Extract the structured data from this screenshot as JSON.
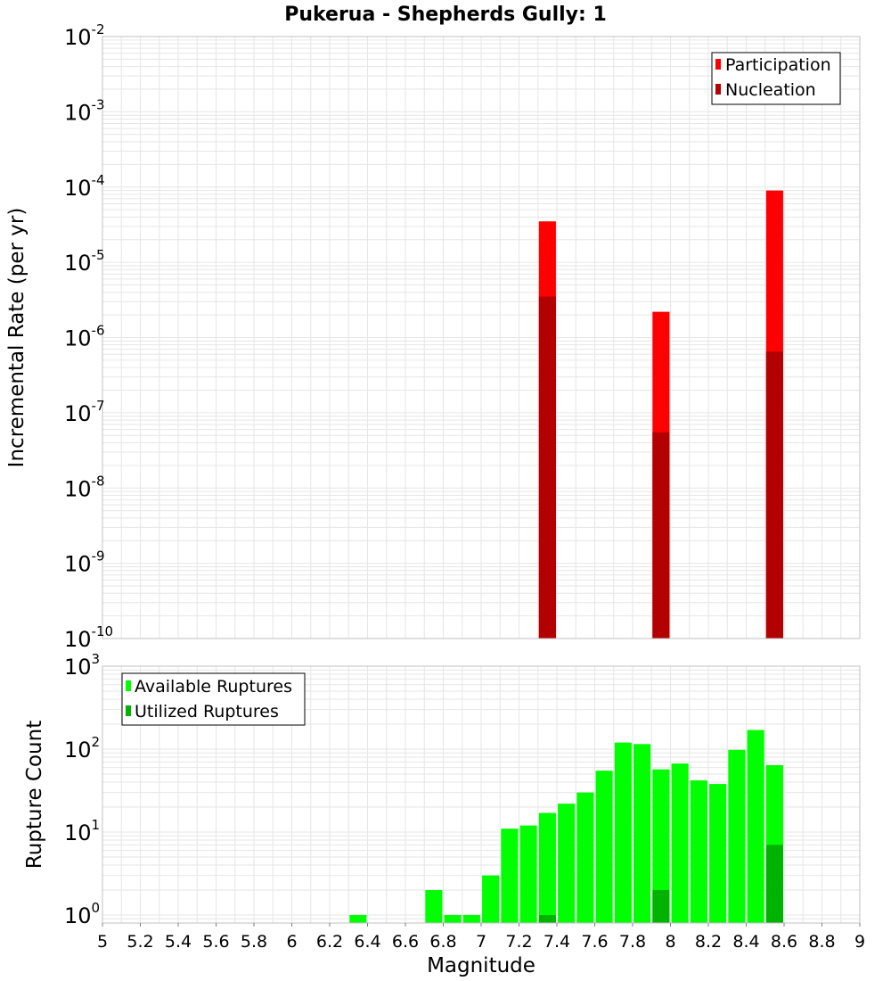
{
  "title": "Pukerua - Shepherds Gully: 1",
  "colors": {
    "participation": "#ff0000",
    "nucleation": "#b30000",
    "available": "#00ff00",
    "utilized": "#00b300",
    "grid": "#e6e6e6",
    "frame": "#c0c0c0"
  },
  "chart_data": [
    {
      "type": "bar",
      "name": "rates",
      "ylabel": "Incremental Rate (per yr)",
      "yscale": "log",
      "ylim_exp": [
        -10,
        -2
      ],
      "ytick_labels": [
        {
          "base": "10",
          "exp": "-10"
        },
        {
          "base": "10",
          "exp": "-9"
        },
        {
          "base": "10",
          "exp": "-8"
        },
        {
          "base": "10",
          "exp": "-7"
        },
        {
          "base": "10",
          "exp": "-6"
        },
        {
          "base": "10",
          "exp": "-5"
        },
        {
          "base": "10",
          "exp": "-4"
        },
        {
          "base": "10",
          "exp": "-3"
        },
        {
          "base": "10",
          "exp": "-2"
        }
      ],
      "legend": {
        "position": "top-right",
        "items": [
          "Participation",
          "Nucleation"
        ]
      },
      "x": [
        7.35,
        7.95,
        8.55
      ],
      "series": [
        {
          "name": "Participation",
          "values": [
            3.5e-05,
            2.2e-06,
            9e-05
          ]
        },
        {
          "name": "Nucleation",
          "values": [
            3.5e-06,
            5.5e-08,
            6.5e-07
          ]
        }
      ]
    },
    {
      "type": "bar",
      "name": "counts",
      "ylabel": "Rupture Count",
      "xlabel": "Magnitude",
      "yscale": "log",
      "ylim": [
        0.8,
        1000
      ],
      "xlim": [
        5,
        9
      ],
      "ytick_labels": [
        {
          "base": "10",
          "exp": "0"
        },
        {
          "base": "10",
          "exp": "1"
        },
        {
          "base": "10",
          "exp": "2"
        },
        {
          "base": "10",
          "exp": "3"
        }
      ],
      "xtick_labels": [
        "5",
        "5.2",
        "5.4",
        "5.6",
        "5.8",
        "6",
        "6.2",
        "6.4",
        "6.6",
        "6.8",
        "7",
        "7.2",
        "7.4",
        "7.6",
        "7.8",
        "8",
        "8.2",
        "8.4",
        "8.6",
        "8.8",
        "9"
      ],
      "legend": {
        "position": "top-left",
        "items": [
          "Available Ruptures",
          "Utilized Ruptures"
        ]
      },
      "x": [
        6.35,
        6.75,
        6.85,
        6.95,
        7.05,
        7.15,
        7.25,
        7.35,
        7.45,
        7.55,
        7.65,
        7.75,
        7.85,
        7.95,
        8.05,
        8.15,
        8.25,
        8.35,
        8.45,
        8.55
      ],
      "series": [
        {
          "name": "Available Ruptures",
          "values": [
            1,
            2,
            1,
            1,
            3,
            11,
            12,
            17,
            22,
            30,
            55,
            120,
            115,
            57,
            67,
            42,
            38,
            98,
            170,
            64
          ]
        },
        {
          "name": "Utilized Ruptures",
          "values": [
            0,
            0,
            0,
            0,
            0,
            0,
            0,
            1,
            0,
            0,
            0,
            0,
            0,
            2,
            0,
            0,
            0,
            0,
            0,
            7
          ]
        }
      ]
    }
  ]
}
